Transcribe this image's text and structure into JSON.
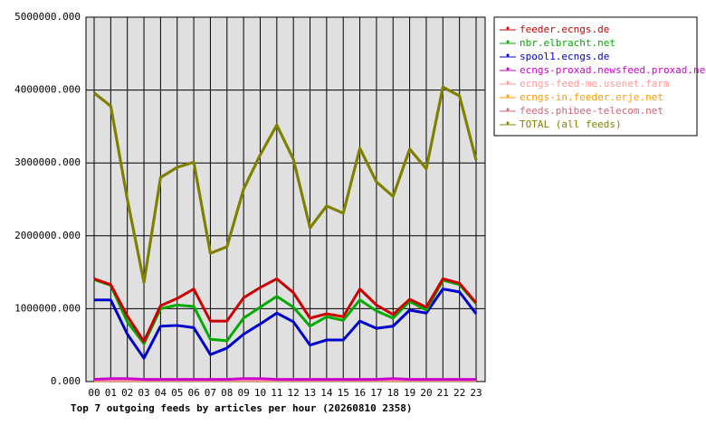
{
  "chart_data": {
    "type": "line",
    "title": "Top 7 outgoing feeds by articles per hour (20260810 2358)",
    "categories": [
      "00",
      "01",
      "02",
      "03",
      "04",
      "05",
      "06",
      "07",
      "08",
      "09",
      "10",
      "11",
      "12",
      "13",
      "14",
      "15",
      "16",
      "17",
      "18",
      "19",
      "20",
      "21",
      "22",
      "23"
    ],
    "ylim": [
      0,
      5000000
    ],
    "yticks": [
      {
        "value": 0,
        "label": "0.000"
      },
      {
        "value": 1000000,
        "label": "1000000.000"
      },
      {
        "value": 2000000,
        "label": "2000000.000"
      },
      {
        "value": 3000000,
        "label": "3000000.000"
      },
      {
        "value": 4000000,
        "label": "4000000.000"
      },
      {
        "value": 5000000,
        "label": "5000000.000"
      }
    ],
    "grid": true,
    "legend": "right",
    "series": [
      {
        "name": "feeder.ecngs.de",
        "color": "#cc0000",
        "values": [
          1410000,
          1330000,
          900000,
          550000,
          1040000,
          1140000,
          1270000,
          830000,
          830000,
          1150000,
          1290000,
          1410000,
          1220000,
          870000,
          930000,
          890000,
          1270000,
          1050000,
          920000,
          1130000,
          1020000,
          1410000,
          1350000,
          1080000
        ]
      },
      {
        "name": "nbr.elbracht.net",
        "color": "#00aa00",
        "values": [
          1400000,
          1320000,
          820000,
          520000,
          1000000,
          1050000,
          1030000,
          580000,
          560000,
          870000,
          1020000,
          1170000,
          1020000,
          760000,
          890000,
          840000,
          1120000,
          970000,
          870000,
          1100000,
          980000,
          1390000,
          1330000,
          1070000
        ]
      },
      {
        "name": "spool1.ecngs.de",
        "color": "#0000cc",
        "values": [
          1120000,
          1120000,
          650000,
          320000,
          760000,
          770000,
          740000,
          370000,
          460000,
          650000,
          790000,
          940000,
          820000,
          500000,
          570000,
          570000,
          830000,
          730000,
          760000,
          980000,
          940000,
          1270000,
          1230000,
          930000
        ]
      },
      {
        "name": "ecngs-proxad.newsfeed.proxad.net",
        "color": "#cc00cc",
        "values": [
          30000,
          40000,
          40000,
          30000,
          30000,
          30000,
          30000,
          30000,
          30000,
          40000,
          40000,
          30000,
          30000,
          30000,
          30000,
          30000,
          30000,
          30000,
          40000,
          30000,
          30000,
          30000,
          30000,
          30000
        ]
      },
      {
        "name": "ecngs-feed-me.usenet.farm",
        "color": "#ff9999",
        "values": [
          20000,
          20000,
          20000,
          20000,
          20000,
          20000,
          20000,
          20000,
          20000,
          20000,
          20000,
          20000,
          20000,
          20000,
          20000,
          20000,
          20000,
          20000,
          20000,
          20000,
          20000,
          20000,
          20000,
          20000
        ]
      },
      {
        "name": "ecngs-in.feeder.erje.net",
        "color": "#ff9900",
        "values": [
          15000,
          15000,
          15000,
          15000,
          15000,
          15000,
          15000,
          15000,
          15000,
          15000,
          15000,
          15000,
          15000,
          15000,
          15000,
          15000,
          15000,
          15000,
          15000,
          15000,
          15000,
          15000,
          15000,
          15000
        ]
      },
      {
        "name": "feeds.phibee-telecom.net",
        "color": "#cc6677",
        "values": [
          25000,
          25000,
          25000,
          25000,
          25000,
          25000,
          25000,
          25000,
          25000,
          25000,
          25000,
          25000,
          25000,
          25000,
          25000,
          25000,
          25000,
          25000,
          25000,
          25000,
          25000,
          25000,
          25000,
          25000
        ]
      },
      {
        "name": "TOTAL (all feeds)",
        "color": "#808000",
        "values": [
          3960000,
          3780000,
          2500000,
          1360000,
          2800000,
          2940000,
          3010000,
          1760000,
          1850000,
          2640000,
          3110000,
          3520000,
          3050000,
          2110000,
          2410000,
          2310000,
          3200000,
          2740000,
          2540000,
          3190000,
          2920000,
          4040000,
          3920000,
          3040000
        ]
      }
    ]
  }
}
